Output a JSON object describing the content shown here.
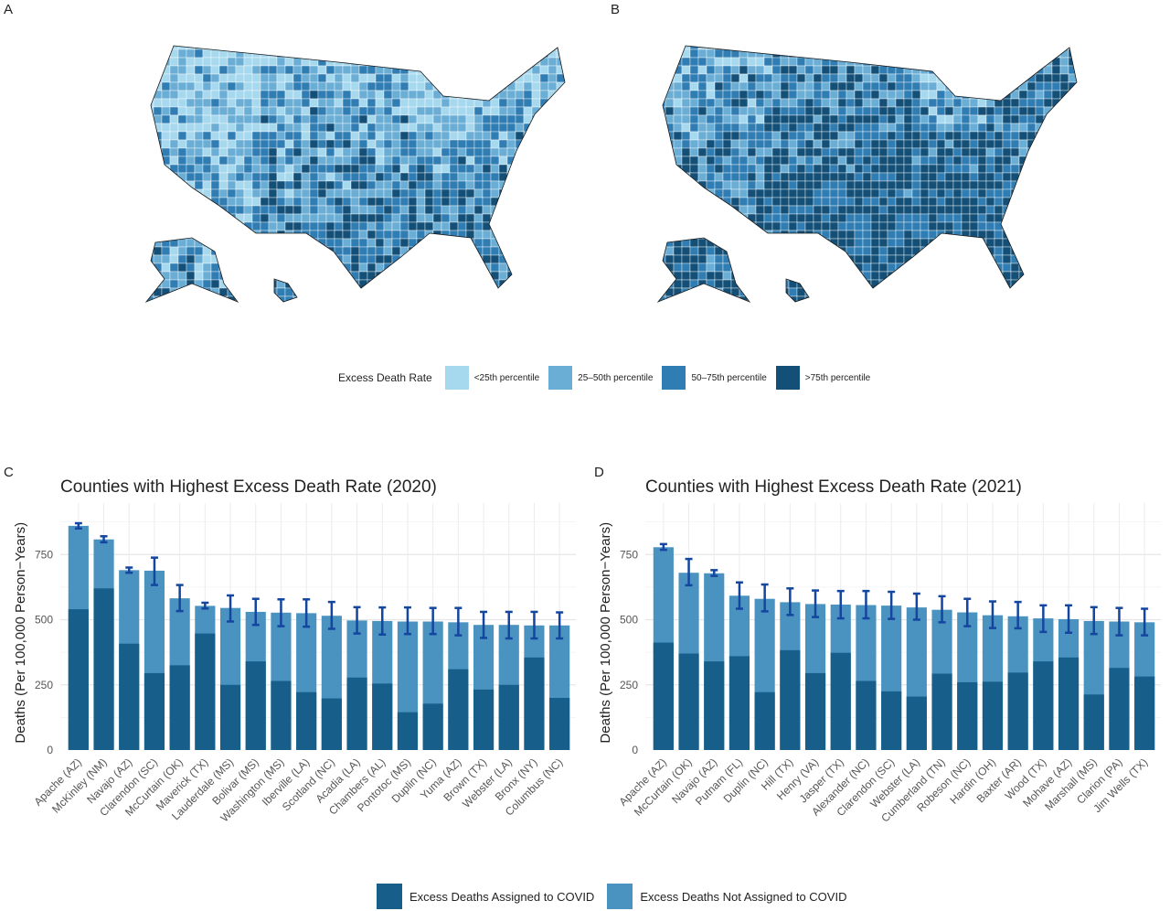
{
  "panels": {
    "a": "A",
    "b": "B",
    "c": "C",
    "d": "D"
  },
  "map_legend": {
    "title": "Excess Death Rate",
    "items": [
      {
        "label": "<25th percentile",
        "color": "#a6d8ee"
      },
      {
        "label": "25–50th percentile",
        "color": "#6aaed6"
      },
      {
        "label": "50–75th percentile",
        "color": "#2f7db2"
      },
      {
        "label": ">75th percentile",
        "color": "#134f77"
      }
    ]
  },
  "bar_legend": {
    "items": [
      {
        "label": "Excess Deaths Assigned to COVID",
        "color": "#175f8a"
      },
      {
        "label": "Excess Deaths Not Assigned to COVID",
        "color": "#4a93c0"
      }
    ],
    "error_bar_color": "#1446a0"
  },
  "chart_data": [
    {
      "type": "bar",
      "stacked": true,
      "title": "Counties with Highest Excess Death Rate (2020)",
      "xlabel": "",
      "ylabel": "Deaths (Per 100,000 Person−Years)",
      "ylim": [
        0,
        1000
      ],
      "yticks": [
        0,
        250,
        500,
        750
      ],
      "grid": true,
      "categories": [
        "Apache (AZ)",
        "McKinley (NM)",
        "Navajo (AZ)",
        "Clarendon (SC)",
        "McCurtain (OK)",
        "Maverick (TX)",
        "Lauderdale (MS)",
        "Bolivar (MS)",
        "Washington (MS)",
        "Iberville (LA)",
        "Scotland (NC)",
        "Acadia (LA)",
        "Chambers (AL)",
        "Pontotoc (MS)",
        "Duplin (NC)",
        "Yuma (AZ)",
        "Brown (TX)",
        "Webster (LA)",
        "Bronx (NY)",
        "Columbus (NC)"
      ],
      "covid": [
        540,
        620,
        408,
        295,
        325,
        447,
        250,
        340,
        265,
        222,
        198,
        278,
        255,
        145,
        178,
        310,
        232,
        250,
        355,
        200
      ],
      "total": [
        860,
        808,
        690,
        688,
        582,
        553,
        545,
        530,
        527,
        525,
        515,
        497,
        495,
        493,
        493,
        490,
        480,
        480,
        478,
        478
      ],
      "error_low": [
        850,
        797,
        680,
        633,
        533,
        543,
        493,
        480,
        475,
        473,
        465,
        447,
        443,
        445,
        445,
        440,
        430,
        428,
        428,
        428
      ],
      "error_high": [
        870,
        820,
        700,
        738,
        633,
        565,
        593,
        580,
        578,
        578,
        568,
        548,
        547,
        547,
        545,
        545,
        530,
        530,
        530,
        528
      ]
    },
    {
      "type": "bar",
      "stacked": true,
      "title": "Counties with Highest Excess Death Rate (2021)",
      "xlabel": "",
      "ylabel": "Deaths (Per 100,000 Person−Years)",
      "ylim": [
        0,
        1000
      ],
      "yticks": [
        0,
        250,
        500,
        750
      ],
      "grid": true,
      "categories": [
        "Apache (AZ)",
        "McCurtain (OK)",
        "Navajo (AZ)",
        "Putnam (FL)",
        "Duplin (NC)",
        "Hill (TX)",
        "Henry (VA)",
        "Jasper (TX)",
        "Alexander (NC)",
        "Clarendon (SC)",
        "Webster (LA)",
        "Cumberland (TN)",
        "Robeson (NC)",
        "Hardin (OH)",
        "Baxter (AR)",
        "Wood (TX)",
        "Mohave (AZ)",
        "Marshall (MS)",
        "Clarion (PA)",
        "Jim Wells (TX)"
      ],
      "covid": [
        412,
        370,
        340,
        360,
        222,
        383,
        295,
        373,
        265,
        225,
        205,
        293,
        260,
        262,
        297,
        340,
        355,
        213,
        315,
        282
      ],
      "total": [
        778,
        680,
        678,
        592,
        580,
        567,
        560,
        558,
        556,
        554,
        547,
        538,
        528,
        517,
        513,
        505,
        502,
        495,
        493,
        490
      ],
      "error_low": [
        768,
        632,
        668,
        542,
        532,
        518,
        510,
        505,
        505,
        503,
        500,
        490,
        475,
        468,
        467,
        453,
        450,
        445,
        440,
        440
      ],
      "error_high": [
        790,
        733,
        690,
        643,
        635,
        620,
        612,
        610,
        610,
        607,
        600,
        590,
        580,
        570,
        568,
        555,
        555,
        548,
        545,
        542
      ]
    }
  ]
}
